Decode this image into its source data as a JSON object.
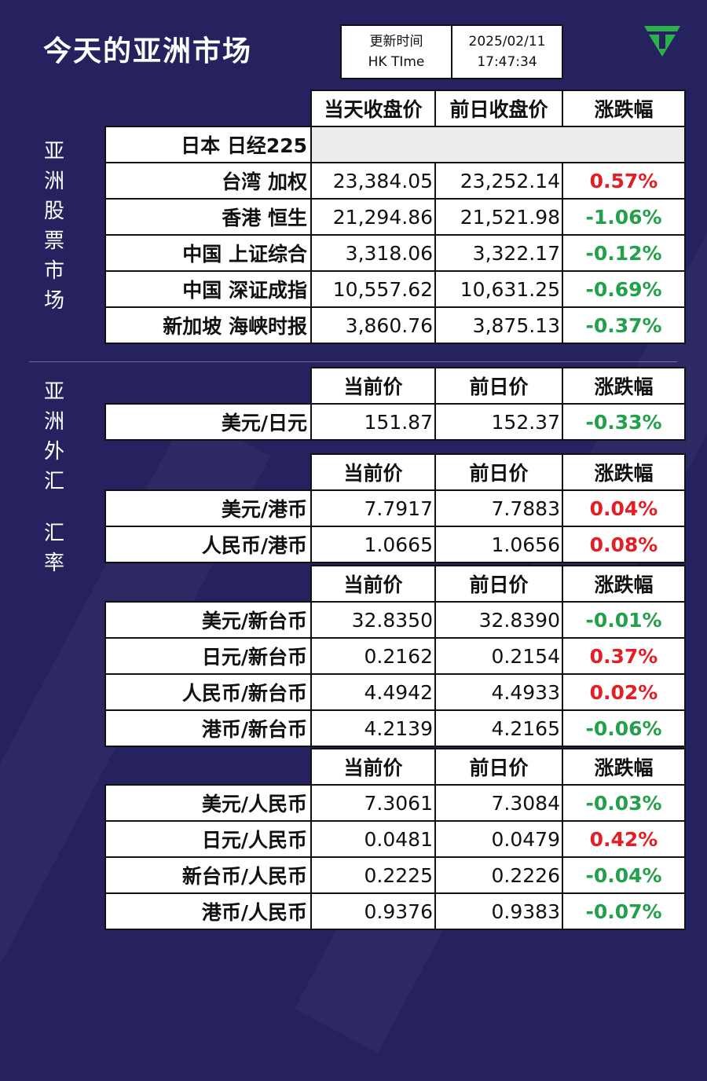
{
  "colors": {
    "background": "#25225f",
    "up": "#e41e25",
    "down": "#22a04a",
    "logo": "#2bb04a"
  },
  "title": "今天的亚洲市场",
  "update": {
    "label1": "更新时间",
    "label2": "HK TIme",
    "date": "2025/02/11",
    "time": "17:47:34"
  },
  "logo_icon": "triangle-logo-icon",
  "side_labels": {
    "stocks": "亚洲股票市场",
    "fx": "亚洲外汇",
    "fx2": "汇率"
  },
  "stocks": {
    "headers": [
      "当天收盘价",
      "前日收盘价",
      "涨跌幅"
    ],
    "rows": [
      {
        "name": "日本 日经225",
        "close": "",
        "prev": "",
        "change": "",
        "dir": "none"
      },
      {
        "name": "台湾 加权",
        "close": "23,384.05",
        "prev": "23,252.14",
        "change": "0.57%",
        "dir": "up"
      },
      {
        "name": "香港 恒生",
        "close": "21,294.86",
        "prev": "21,521.98",
        "change": "-1.06%",
        "dir": "down"
      },
      {
        "name": "中国 上证综合",
        "close": "3,318.06",
        "prev": "3,322.17",
        "change": "-0.12%",
        "dir": "down"
      },
      {
        "name": "中国 深证成指",
        "close": "10,557.62",
        "prev": "10,631.25",
        "change": "-0.69%",
        "dir": "down"
      },
      {
        "name": "新加坡 海峡时报",
        "close": "3,860.76",
        "prev": "3,875.13",
        "change": "-0.37%",
        "dir": "down"
      }
    ]
  },
  "fx_headers": [
    "当前价",
    "前日价",
    "涨跌幅"
  ],
  "fx_groups": [
    {
      "rows": [
        {
          "name": "美元/日元",
          "cur": "151.87",
          "prev": "152.37",
          "change": "-0.33%",
          "dir": "down"
        }
      ]
    },
    {
      "rows": [
        {
          "name": "美元/港币",
          "cur": "7.7917",
          "prev": "7.7883",
          "change": "0.04%",
          "dir": "up"
        },
        {
          "name": "人民币/港币",
          "cur": "1.0665",
          "prev": "1.0656",
          "change": "0.08%",
          "dir": "up"
        }
      ]
    },
    {
      "rows": [
        {
          "name": "美元/新台币",
          "cur": "32.8350",
          "prev": "32.8390",
          "change": "-0.01%",
          "dir": "down"
        },
        {
          "name": "日元/新台币",
          "cur": "0.2162",
          "prev": "0.2154",
          "change": "0.37%",
          "dir": "up"
        },
        {
          "name": "人民币/新台币",
          "cur": "4.4942",
          "prev": "4.4933",
          "change": "0.02%",
          "dir": "up"
        },
        {
          "name": "港币/新台币",
          "cur": "4.2139",
          "prev": "4.2165",
          "change": "-0.06%",
          "dir": "down"
        }
      ]
    },
    {
      "rows": [
        {
          "name": "美元/人民币",
          "cur": "7.3061",
          "prev": "7.3084",
          "change": "-0.03%",
          "dir": "down"
        },
        {
          "name": "日元/人民币",
          "cur": "0.0481",
          "prev": "0.0479",
          "change": "0.42%",
          "dir": "up"
        },
        {
          "name": "新台币/人民币",
          "cur": "0.2225",
          "prev": "0.2226",
          "change": "-0.04%",
          "dir": "down"
        },
        {
          "name": "港币/人民币",
          "cur": "0.9376",
          "prev": "0.9383",
          "change": "-0.07%",
          "dir": "down"
        }
      ]
    }
  ]
}
